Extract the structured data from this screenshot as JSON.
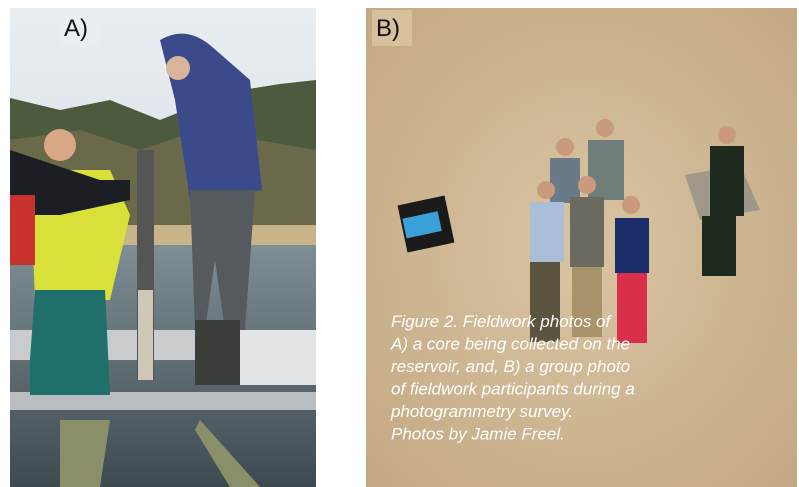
{
  "panels": [
    {
      "label": "A)"
    },
    {
      "label": "B)"
    }
  ],
  "caption": {
    "lines": [
      "Figure 2. Fieldwork photos of",
      "A) a core being collected on the",
      "reservoir, and, B) a group photo",
      "of fieldwork participants during a",
      "photogrammetry survey.",
      "Photos by Jamie Freel."
    ]
  }
}
